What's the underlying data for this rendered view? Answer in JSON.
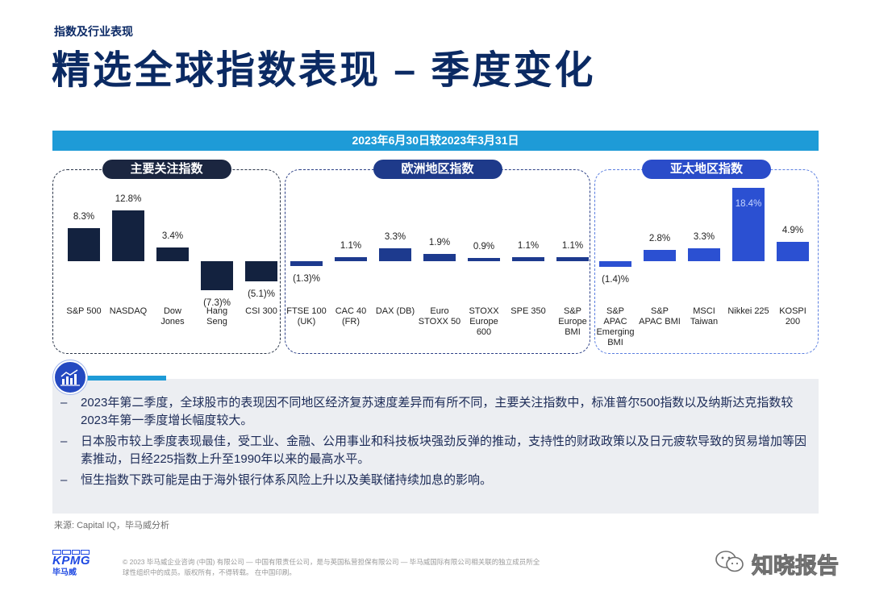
{
  "header": {
    "section_label": "指数及行业表现",
    "title": "精选全球指数表现 – 季度变化",
    "period_banner": "2023年6月30日较2023年3月31日"
  },
  "chart_data": [
    {
      "type": "bar",
      "title": "主要关注指数",
      "categories": [
        "S&P 500",
        "NASDAQ",
        "Dow\nJones",
        "Hang\nSeng",
        "CSI 300"
      ],
      "values": [
        8.3,
        12.8,
        3.4,
        -7.3,
        -5.1
      ],
      "data_labels": [
        "8.3%",
        "12.8%",
        "3.4%",
        "(7.3)%",
        "(5.1)%"
      ],
      "bar_color": "#13223f",
      "pill_color": "#1b2640",
      "border_color": "#2a3549"
    },
    {
      "type": "bar",
      "title": "欧洲地区指数",
      "categories": [
        "FTSE 100\n(UK)",
        "CAC 40\n(FR)",
        "DAX (DB)",
        "Euro\nSTOXX 50",
        "STOXX\nEurope\n600",
        "SPE 350",
        "S&P\nEurope\nBMI"
      ],
      "values": [
        -1.3,
        1.1,
        3.3,
        1.9,
        0.9,
        1.1,
        1.1
      ],
      "data_labels": [
        "(1.3)%",
        "1.1%",
        "3.3%",
        "1.9%",
        "0.9%",
        "1.1%",
        "1.1%"
      ],
      "bar_color": "#1d3a8e",
      "pill_color": "#1e3a8a",
      "border_color": "#2b3f86"
    },
    {
      "type": "bar",
      "title": "亚太地区指数",
      "categories": [
        "S&P\nAPAC\nEmerging\nBMI",
        "S&P\nAPAC BMI",
        "MSCI\nTaiwan",
        "Nikkei 225",
        "KOSPI\n200"
      ],
      "values": [
        -1.4,
        2.8,
        3.3,
        18.4,
        4.9
      ],
      "data_labels": [
        "(1.4)%",
        "2.8%",
        "3.3%",
        "18.4%",
        "4.9%"
      ],
      "bar_color": "#2b50d2",
      "pill_color": "#2a4cc9",
      "border_color": "#5b7fe0"
    }
  ],
  "commentary": {
    "icon": "bar-chart-trend-icon",
    "bullets": [
      "2023年第二季度，全球股市的表现因不同地区经济复苏速度差异而有所不同，主要关注指数中，标准普尔500指数以及纳斯达克指数较2023年第一季度增长幅度较大。",
      "日本股市较上季度表现最佳，受工业、金融、公用事业和科技板块强劲反弹的推动，支持性的财政政策以及日元疲软导致的贸易增加等因素推动，日经225指数上升至1990年以来的最高水平。",
      "恒生指数下跌可能是由于海外银行体系风险上升以及美联储持续加息的影响。"
    ]
  },
  "source": "来源: Capital IQ，毕马威分析",
  "footer": {
    "logo_text": "KPMG",
    "logo_cn": "毕马威",
    "disclaimer": "© 2023 毕马威企业咨询 (中国) 有限公司 — 中国有限责任公司，是与英国私营担保有限公司 — 毕马威国际有限公司相关联的独立成员所全球性组织中的成员。版权所有，不得转载。 在中国印刷。",
    "watermark_icon": "wechat-icon",
    "watermark": "知晓报告"
  },
  "colors": {
    "brand_navy": "#0b2a63",
    "banner_cyan": "#1e9bd7",
    "commentary_bg": "#eceef2",
    "logo_blue": "#1e49e2"
  }
}
